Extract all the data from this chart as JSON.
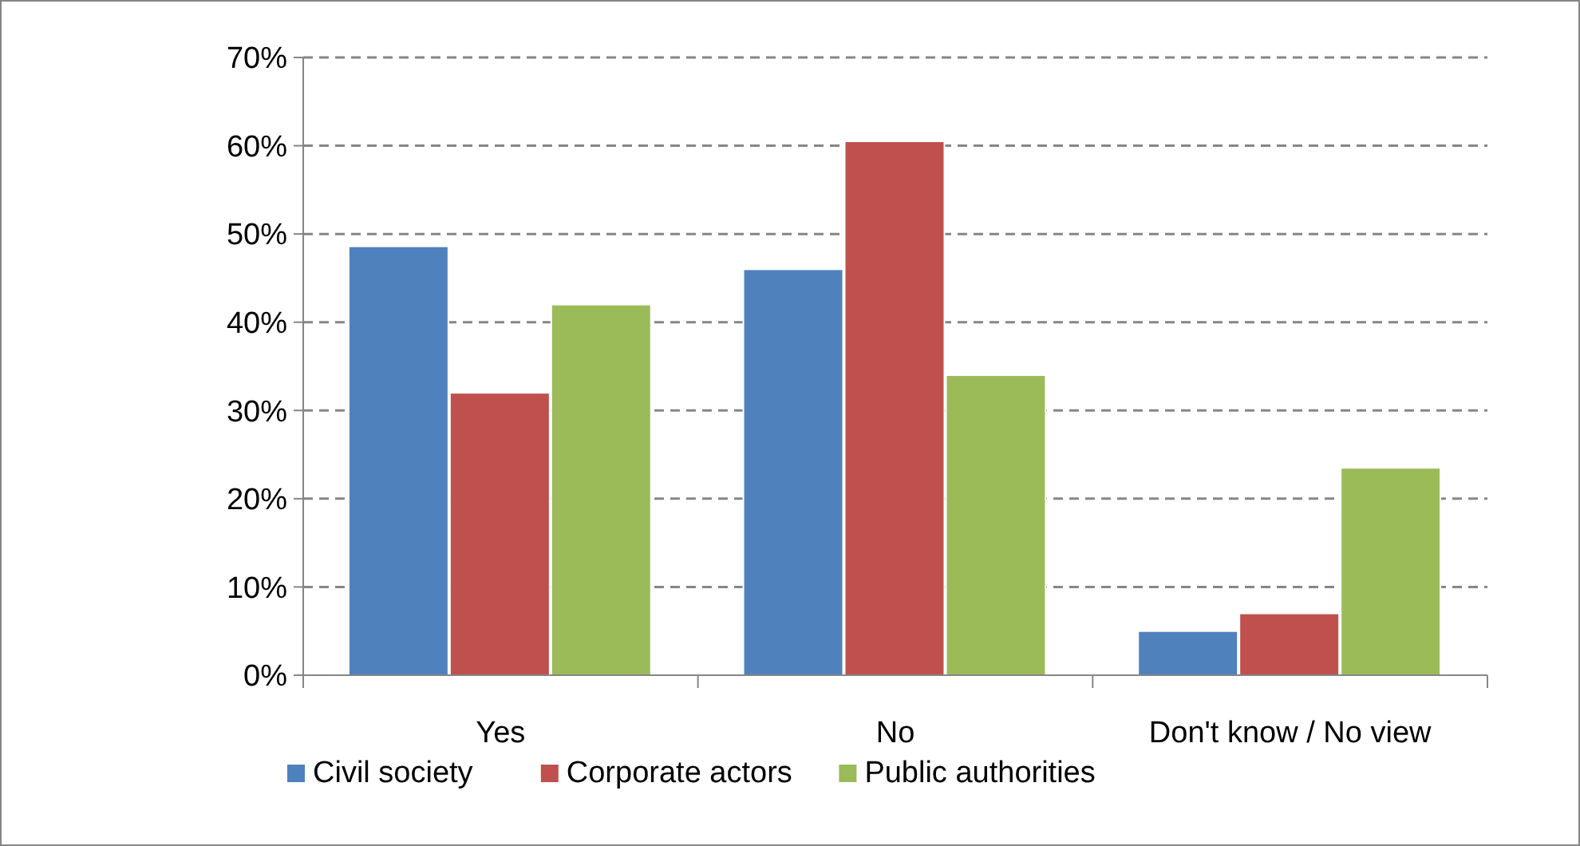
{
  "chart_data": {
    "type": "bar",
    "categories": [
      "Yes",
      "No",
      "Don't know / No view"
    ],
    "series": [
      {
        "name": "Civil society",
        "color": "#4f81bd",
        "values": [
          48.6,
          46,
          5
        ]
      },
      {
        "name": "Corporate actors",
        "color": "#c0504d",
        "values": [
          32,
          60.5,
          7
        ]
      },
      {
        "name": "Public authorities",
        "color": "#9bbb59",
        "values": [
          42,
          34,
          23.5
        ]
      }
    ],
    "ylim": [
      0,
      70
    ],
    "yticks": [
      {
        "value": 0,
        "label": "0%"
      },
      {
        "value": 10,
        "label": "10%"
      },
      {
        "value": 20,
        "label": "20%"
      },
      {
        "value": 30,
        "label": "30%"
      },
      {
        "value": 40,
        "label": "40%"
      },
      {
        "value": 50,
        "label": "50%"
      },
      {
        "value": 60,
        "label": "60%"
      },
      {
        "value": 70,
        "label": "70%"
      }
    ],
    "grid": "y",
    "line_style": "dashed",
    "legend": "bottom"
  }
}
